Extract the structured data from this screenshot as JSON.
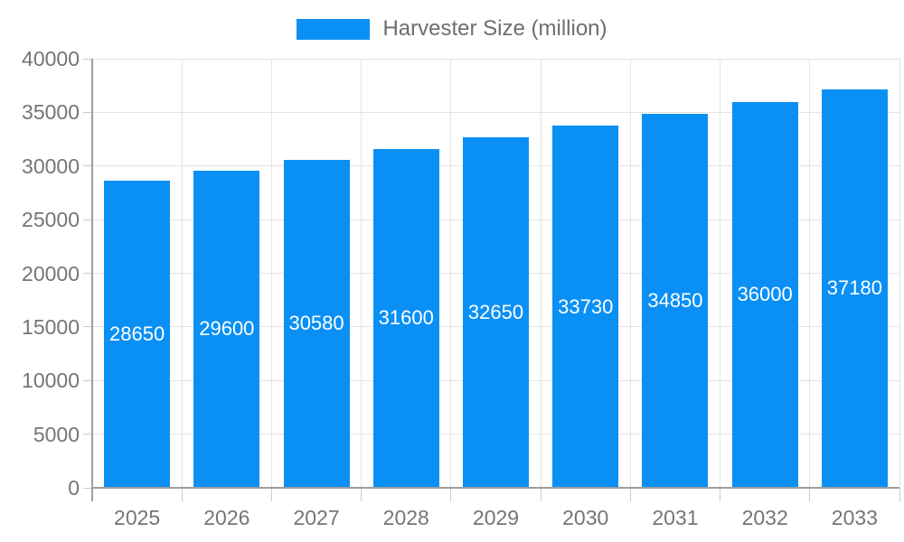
{
  "chart_data": {
    "type": "bar",
    "title": "",
    "legend": "Harvester Size (million)",
    "categories": [
      "2025",
      "2026",
      "2027",
      "2028",
      "2029",
      "2030",
      "2031",
      "2032",
      "2033"
    ],
    "values": [
      28650,
      29600,
      30580,
      31600,
      32650,
      33730,
      34850,
      36000,
      37180
    ],
    "value_labels": [
      "28650",
      "29600",
      "30580",
      "31600",
      "32650",
      "33730",
      "34850",
      "36000",
      "37180"
    ],
    "xlabel": "",
    "ylabel": "",
    "ylim": [
      0,
      40000
    ],
    "ytick_step": 5000,
    "ytick_labels": [
      "0",
      "5000",
      "10000",
      "15000",
      "20000",
      "25000",
      "30000",
      "35000",
      "40000"
    ],
    "grid": true,
    "legend_position": "top-center",
    "colors": {
      "bar": "#0A90F5",
      "bar_value_text": "#ffffff",
      "axis_text": "#757575",
      "legend_text": "#6e6e6e",
      "gridline": "#e4e4e4",
      "axis_line": "#9e9e9e",
      "tick": "#cccccc",
      "background": "#ffffff"
    }
  }
}
